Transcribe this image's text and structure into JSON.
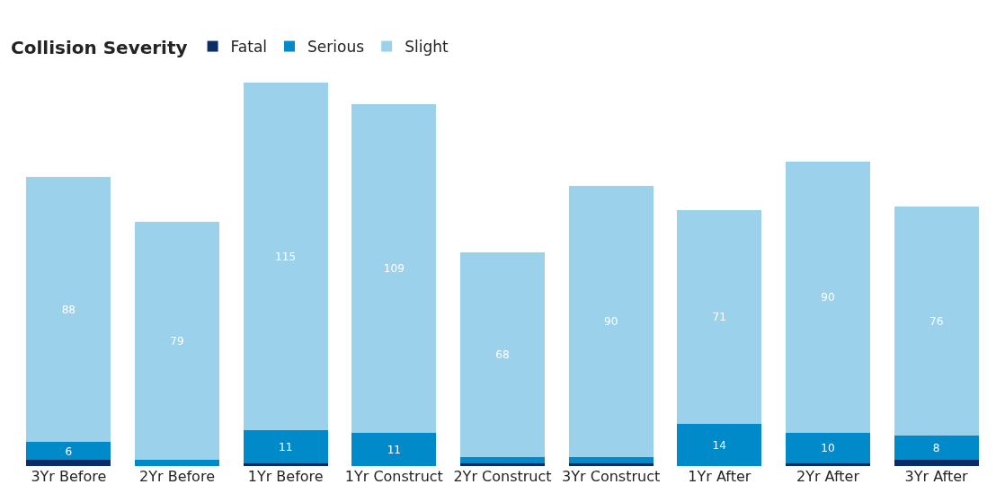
{
  "chart_data": {
    "type": "bar",
    "stacked": true,
    "legend_title": "Collision Severity",
    "legend": "top left",
    "categories": [
      "3Yr Before",
      "2Yr Before",
      "1Yr Before",
      "1Yr Construct",
      "2Yr Construct",
      "3Yr Construct",
      "1Yr After",
      "2Yr After",
      "3Yr After"
    ],
    "series": [
      {
        "name": "Fatal",
        "color": "#0b2d67",
        "values": [
          2,
          0,
          1,
          0,
          1,
          1,
          0,
          1,
          2
        ]
      },
      {
        "name": "Serious",
        "color": "#008ac9",
        "values": [
          6,
          2,
          11,
          11,
          2,
          2,
          14,
          10,
          8
        ],
        "value_labels": [
          "6",
          null,
          "11",
          "11",
          null,
          null,
          "14",
          "10",
          "8"
        ]
      },
      {
        "name": "Slight",
        "color": "#9bd1ea",
        "values": [
          88,
          79,
          115,
          109,
          68,
          90,
          71,
          90,
          76
        ],
        "value_labels": [
          "88",
          "79",
          "115",
          "109",
          "68",
          "90",
          "71",
          "90",
          "76"
        ]
      }
    ]
  }
}
